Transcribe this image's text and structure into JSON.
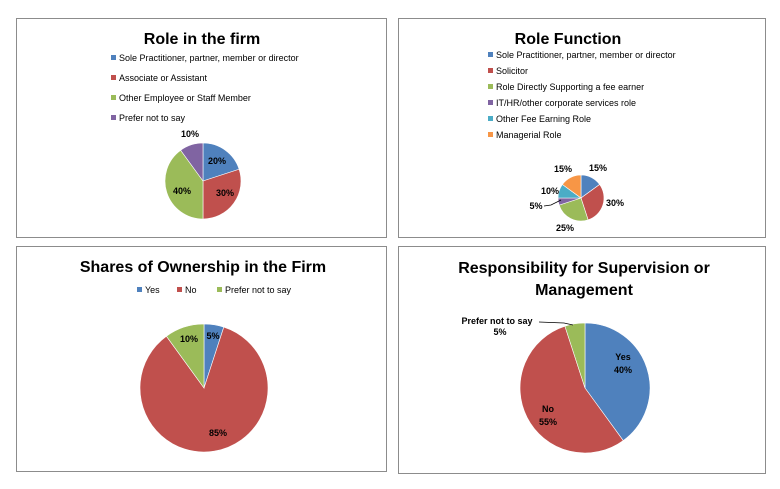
{
  "charts": [
    {
      "type": "pie",
      "title": "Role in the firm",
      "legend_position": "top",
      "categories": [
        "Sole Practitioner, partner, member or director",
        "Associate or Assistant",
        "Other Employee or Staff Member",
        "Prefer not to say"
      ],
      "values": [
        20,
        30,
        40,
        10
      ],
      "labels": [
        "20%",
        "30%",
        "40%",
        "10%"
      ],
      "colors": [
        "#4f81bd",
        "#c0504d",
        "#9bbb59",
        "#8064a2"
      ]
    },
    {
      "type": "pie",
      "title": "Role Function",
      "legend_position": "top",
      "categories": [
        "Sole Practitioner, partner, member or director",
        "Solicitor",
        "Role Directly Supporting a fee earner",
        "IT/HR/other corporate services role",
        "Other Fee Earning Role",
        "Managerial Role"
      ],
      "values": [
        15,
        30,
        25,
        5,
        10,
        15
      ],
      "labels": [
        "15%",
        "30%",
        "25%",
        "5%",
        "10%",
        "15%"
      ],
      "colors": [
        "#4f81bd",
        "#c0504d",
        "#9bbb59",
        "#8064a2",
        "#4bacc6",
        "#f79646"
      ]
    },
    {
      "type": "pie",
      "title": "Shares of Ownership in the Firm",
      "legend_position": "top",
      "categories": [
        "Yes",
        "No",
        "Prefer not to say"
      ],
      "values": [
        5,
        85,
        10
      ],
      "labels": [
        "5%",
        "85%",
        "10%"
      ],
      "colors": [
        "#4f81bd",
        "#c0504d",
        "#9bbb59"
      ]
    },
    {
      "type": "pie",
      "title_lines": [
        "Responsibility for Supervision or",
        "Management"
      ],
      "legend_position": "none",
      "categories": [
        "Yes",
        "No",
        "Prefer not to say"
      ],
      "values": [
        40,
        55,
        5
      ],
      "labels": [
        "40%",
        "55%",
        "5%"
      ],
      "colors": [
        "#4f81bd",
        "#c0504d",
        "#9bbb59"
      ]
    }
  ]
}
